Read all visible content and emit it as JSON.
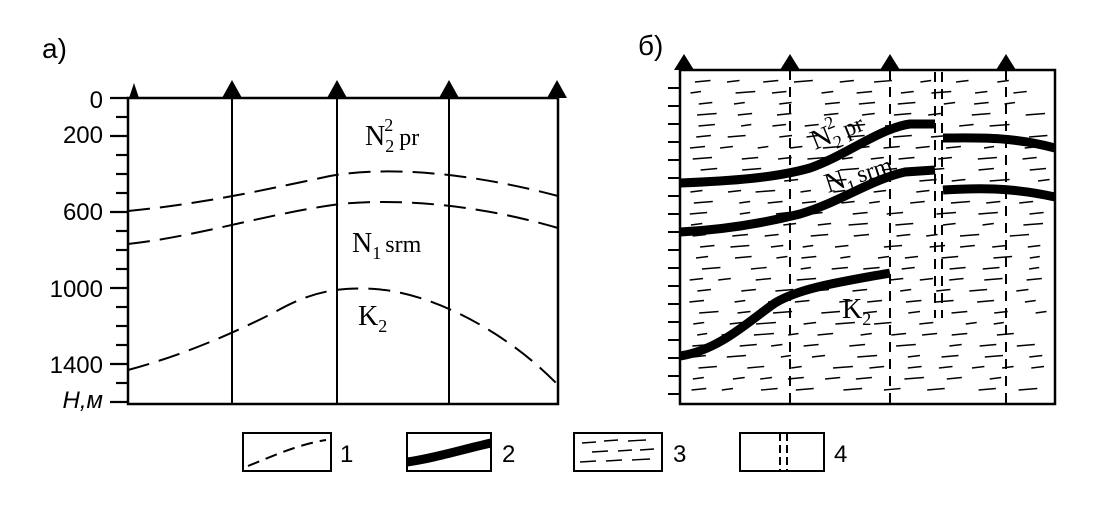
{
  "panel_a": {
    "label": "а)",
    "depth_ticks": [
      "0",
      "200",
      "600",
      "1000",
      "1400"
    ],
    "depth_unit": "Н,м",
    "formations": {
      "top": {
        "base": "N",
        "sub": "2",
        "sup": "2",
        "suffix": "pr"
      },
      "middle": {
        "base": "N",
        "sub": "1",
        "suffix": "srm"
      },
      "bottom": {
        "base": "K",
        "sub": "2"
      }
    }
  },
  "panel_b": {
    "label": "б)",
    "formations": {
      "top": {
        "base": "N",
        "sub": "2",
        "sup": "2",
        "suffix": "pr"
      },
      "middle": {
        "base": "N",
        "sub": "1",
        "suffix": "srm"
      },
      "bottom": {
        "base": "K",
        "sub": "2"
      }
    }
  },
  "legend": [
    {
      "number": "1",
      "symbol": "dashed-line"
    },
    {
      "number": "2",
      "symbol": "thick-line"
    },
    {
      "number": "3",
      "symbol": "dash-hatch"
    },
    {
      "number": "4",
      "symbol": "double-vertical-line"
    }
  ]
}
